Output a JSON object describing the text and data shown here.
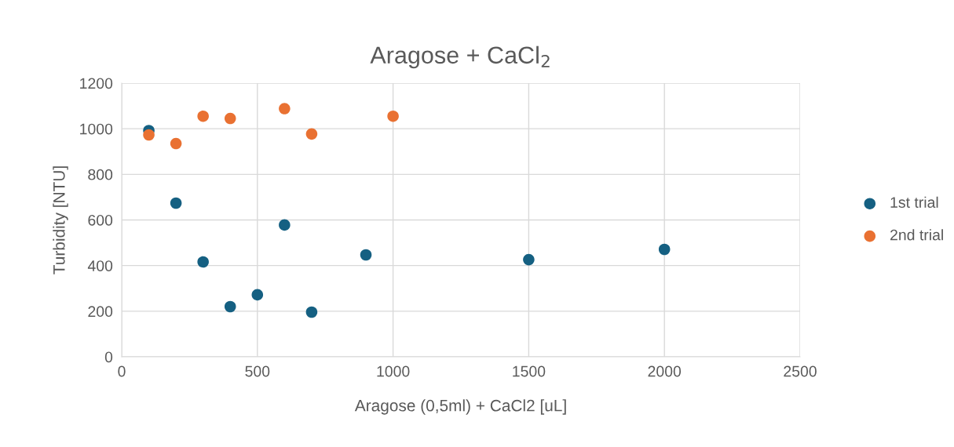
{
  "chart_data": {
    "type": "scatter",
    "title": "Aragose + CaCl$_{2}$",
    "xlabel": "Aragose (0,5ml) + CaCl2 [uL]",
    "ylabel": "Turbidity [NTU]",
    "xlim": [
      0,
      2500
    ],
    "xticks": [
      0,
      500,
      1000,
      1500,
      2000,
      2500
    ],
    "ylim": [
      0,
      1200
    ],
    "yticks": [
      0,
      200,
      400,
      600,
      800,
      1000,
      1200
    ],
    "grid": true,
    "legend": "right",
    "marker": "circle",
    "series": [
      {
        "name": "1st trial",
        "color": "#156082",
        "x": [
          100,
          200,
          300,
          400,
          500,
          600,
          700,
          900,
          1500,
          2000
        ],
        "values": [
          992,
          674,
          416,
          220,
          272,
          578,
          196,
          447,
          426,
          471
        ]
      },
      {
        "name": "2nd trial",
        "color": "#e97132",
        "x": [
          100,
          200,
          300,
          400,
          600,
          700,
          1000
        ],
        "values": [
          973,
          935,
          1055,
          1045,
          1088,
          977,
          1055
        ]
      }
    ]
  }
}
